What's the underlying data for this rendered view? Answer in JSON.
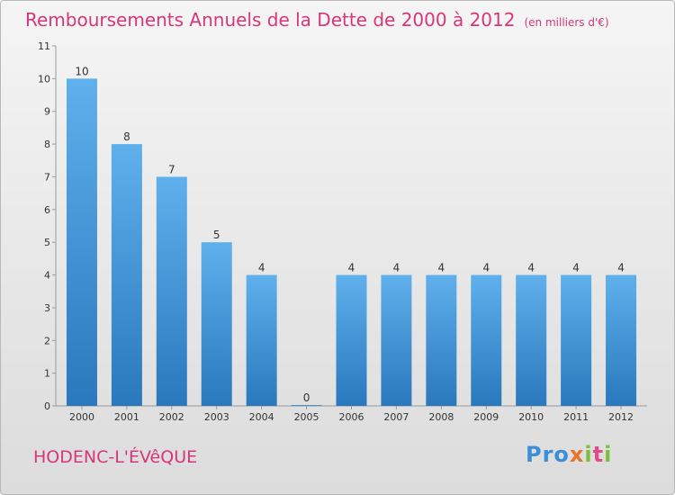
{
  "title": "Remboursements Annuels de la Dette de 2000 à 2012",
  "unit": "(en milliers d'€)",
  "commune": "HODENC-L'ÉVêQUE",
  "logo": {
    "part1": "Pro",
    "part2": "x",
    "part3": "i",
    "part4": "t",
    "part5": "i"
  },
  "chart_data": {
    "type": "bar",
    "categories": [
      "2000",
      "2001",
      "2002",
      "2003",
      "2004",
      "2005",
      "2006",
      "2007",
      "2008",
      "2009",
      "2010",
      "2011",
      "2012"
    ],
    "values": [
      10,
      8,
      7,
      5,
      4,
      0,
      4,
      4,
      4,
      4,
      4,
      4,
      4
    ],
    "ylim": [
      0,
      11
    ],
    "yticks": [
      0,
      1,
      2,
      3,
      4,
      5,
      6,
      7,
      8,
      9,
      10,
      11
    ],
    "grid": false,
    "bar_color": "#4a9fe0",
    "title_color": "#d6377a"
  }
}
